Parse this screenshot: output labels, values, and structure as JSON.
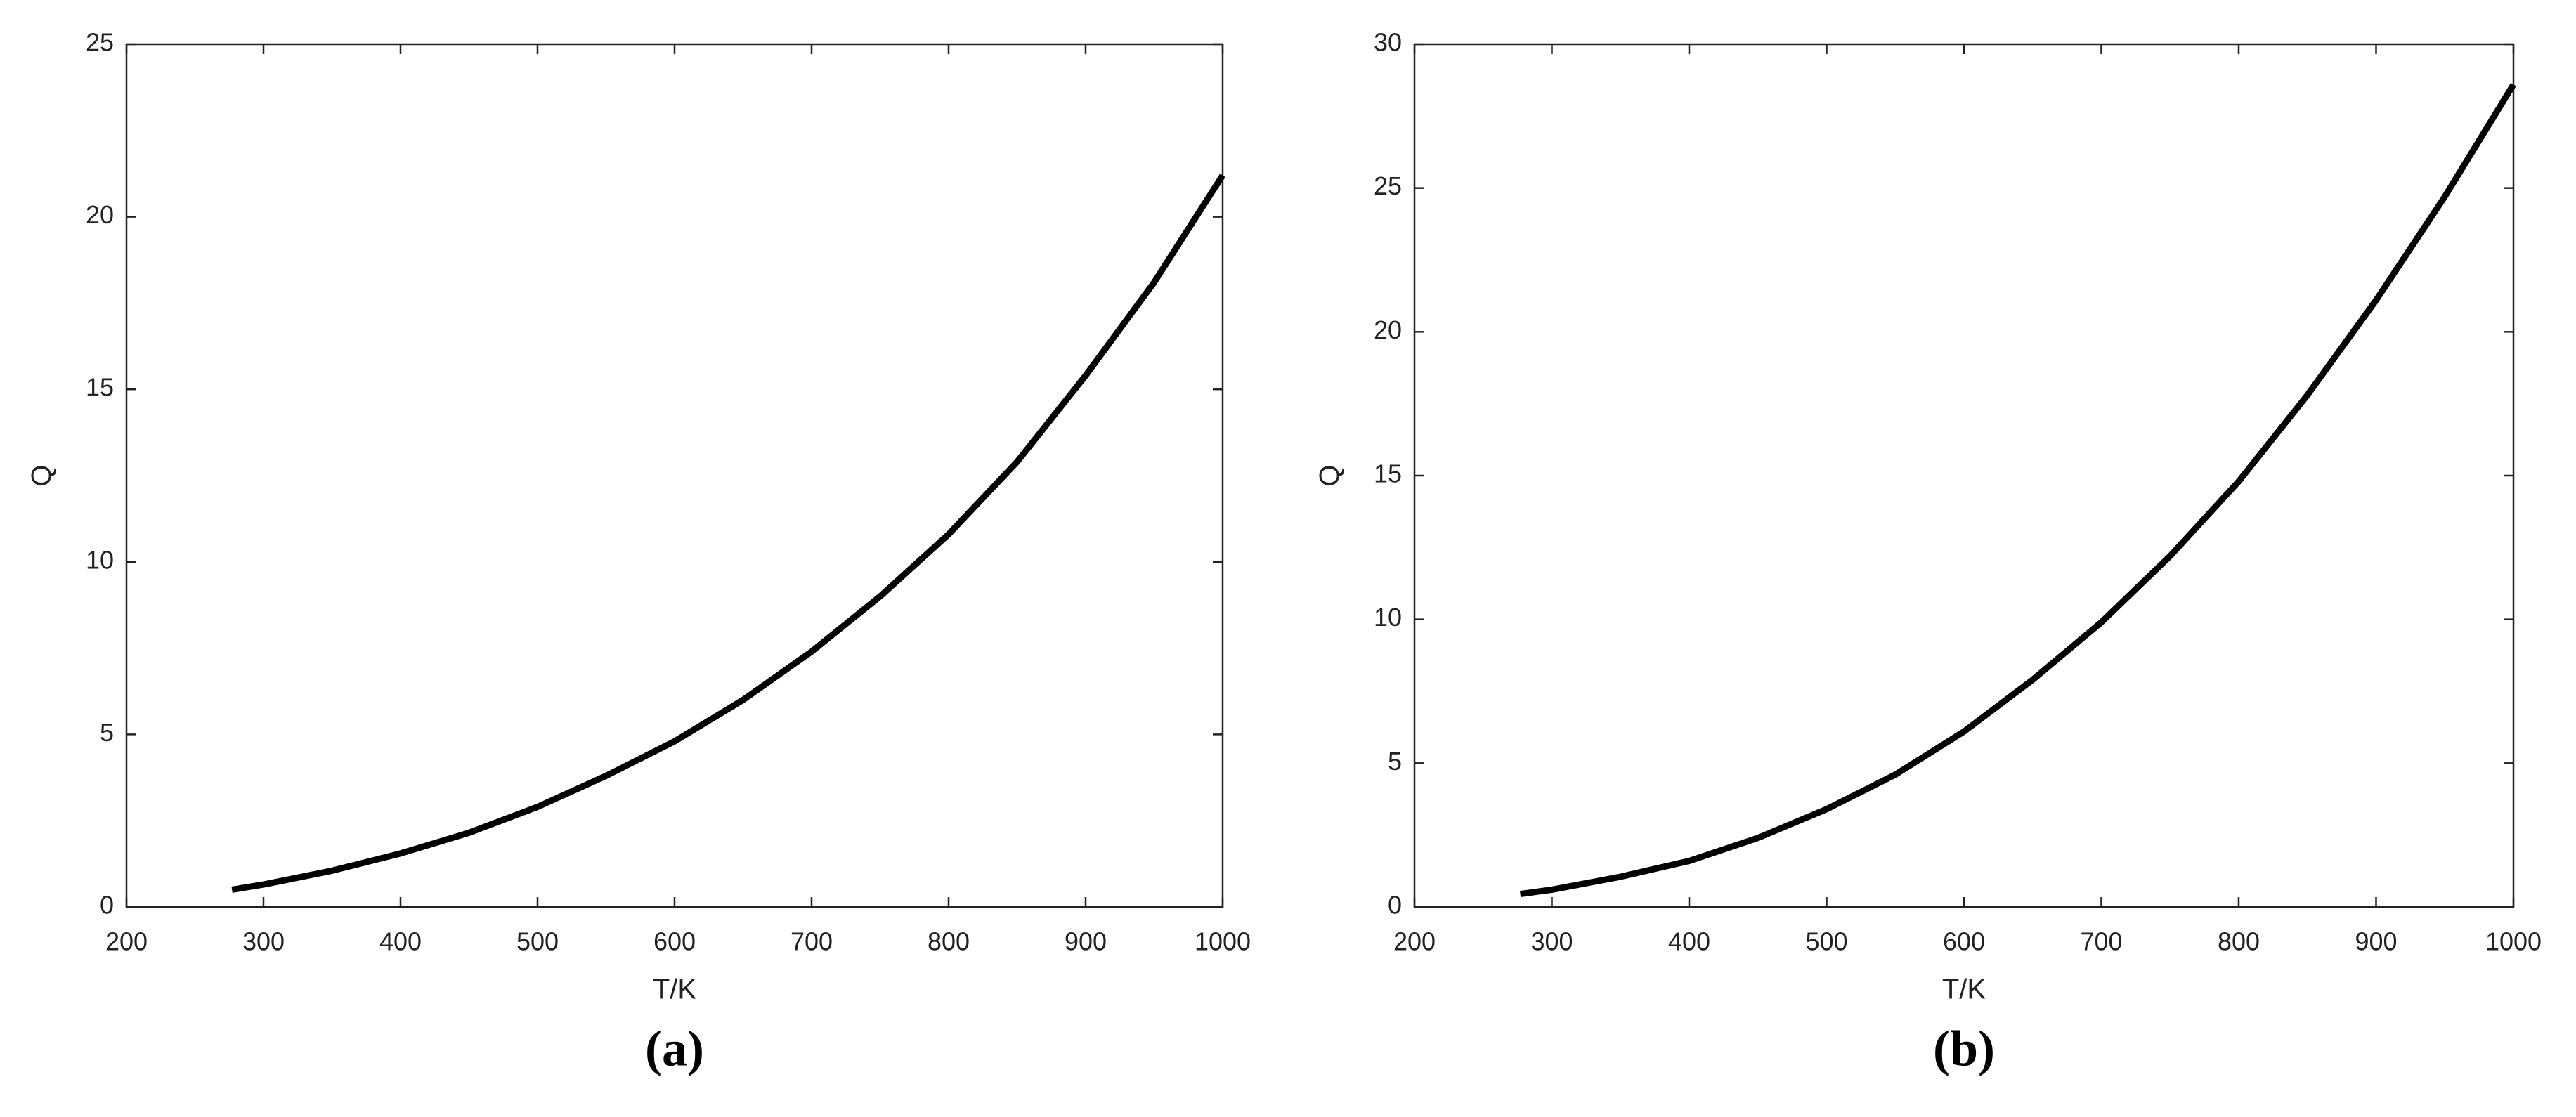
{
  "chart_data": [
    {
      "type": "line",
      "caption": "(a)",
      "xlabel": "T/K",
      "ylabel": "Q",
      "xlim": [
        200,
        1000
      ],
      "xticks": [
        200,
        300,
        400,
        500,
        600,
        700,
        800,
        900,
        1000
      ],
      "ylim": [
        0,
        25
      ],
      "yticks": [
        0,
        5,
        10,
        15,
        20,
        25
      ],
      "series": [
        {
          "color": "#000000",
          "x": [
            277,
            300,
            350,
            400,
            450,
            500,
            550,
            600,
            650,
            700,
            750,
            800,
            850,
            900,
            950,
            1000
          ],
          "values": [
            0.5,
            0.65,
            1.05,
            1.55,
            2.15,
            2.9,
            3.8,
            4.8,
            6.0,
            7.4,
            9.0,
            10.8,
            12.9,
            15.4,
            18.1,
            21.2
          ]
        }
      ]
    },
    {
      "type": "line",
      "caption": "(b)",
      "xlabel": "T/K",
      "ylabel": "Q",
      "xlim": [
        200,
        1000
      ],
      "xticks": [
        200,
        300,
        400,
        500,
        600,
        700,
        800,
        900,
        1000
      ],
      "ylim": [
        0,
        30
      ],
      "yticks": [
        0,
        5,
        10,
        15,
        20,
        25,
        30
      ],
      "series": [
        {
          "color": "#000000",
          "x": [
            277,
            300,
            350,
            400,
            450,
            500,
            550,
            600,
            650,
            700,
            750,
            800,
            850,
            900,
            950,
            1000
          ],
          "values": [
            0.45,
            0.6,
            1.05,
            1.6,
            2.4,
            3.4,
            4.6,
            6.1,
            7.9,
            9.9,
            12.2,
            14.8,
            17.8,
            21.1,
            24.7,
            28.6
          ]
        }
      ]
    }
  ]
}
